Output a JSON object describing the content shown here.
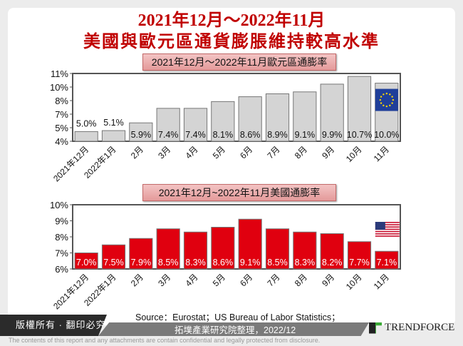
{
  "header": {
    "title_line1": "2021年12月～2022年11月",
    "title_line2": "美國與歐元區通貨膨脹維持較高水準"
  },
  "chart_data": [
    {
      "type": "bar",
      "title": "2021年12月～2022年11月歐元區通膨率",
      "categories": [
        "2021年12月",
        "2022年1月",
        "2月",
        "3月",
        "4月",
        "5月",
        "6月",
        "7月",
        "8月",
        "9月",
        "10月",
        "11月"
      ],
      "values": [
        5.0,
        5.1,
        5.9,
        7.4,
        7.4,
        8.1,
        8.6,
        8.9,
        9.1,
        9.9,
        10.7,
        10.0
      ],
      "data_labels": [
        "5.0%",
        "5.1%",
        "5.9%",
        "7.4%",
        "7.4%",
        "8.1%",
        "8.6%",
        "8.9%",
        "9.1%",
        "9.9%",
        "10.7%",
        "10.0%"
      ],
      "ytick_labels": [
        "4%",
        "5%",
        "7%",
        "8%",
        "10%",
        "11%"
      ],
      "ylim": [
        4,
        11
      ],
      "bar_color": "#d4d4d4",
      "grid": false,
      "flag": "eu-flag-icon"
    },
    {
      "type": "bar",
      "title": "2021年12月~2022年11月美國通膨率",
      "categories": [
        "2021年12月",
        "2022年1月",
        "2月",
        "3月",
        "4月",
        "5月",
        "6月",
        "7月",
        "8月",
        "9月",
        "10月",
        "11月"
      ],
      "values": [
        7.0,
        7.5,
        7.9,
        8.5,
        8.3,
        8.6,
        9.1,
        8.5,
        8.3,
        8.2,
        7.7,
        7.1
      ],
      "data_labels": [
        "7.0%",
        "7.5%",
        "7.9%",
        "8.5%",
        "8.3%",
        "8.6%",
        "9.1%",
        "8.5%",
        "8.3%",
        "8.2%",
        "7.7%",
        "7.1%"
      ],
      "ytick_labels": [
        "6%",
        "7%",
        "8%",
        "9%",
        "10%"
      ],
      "ylim": [
        6,
        10
      ],
      "bar_color": "#e0000f",
      "grid": false,
      "flag": "us-flag-icon"
    }
  ],
  "footer": {
    "copyright": "版權所有 · 翻印必究",
    "source_line1": "Source：Eurostat；US Bureau of Labor Statistics；",
    "source_line2": "拓墣產業研究院整理，2022/12",
    "brand": "TRENDFORCE",
    "disclaimer": "The contents of this report and any attachments are contain confidential and legally protected from disclosure."
  }
}
